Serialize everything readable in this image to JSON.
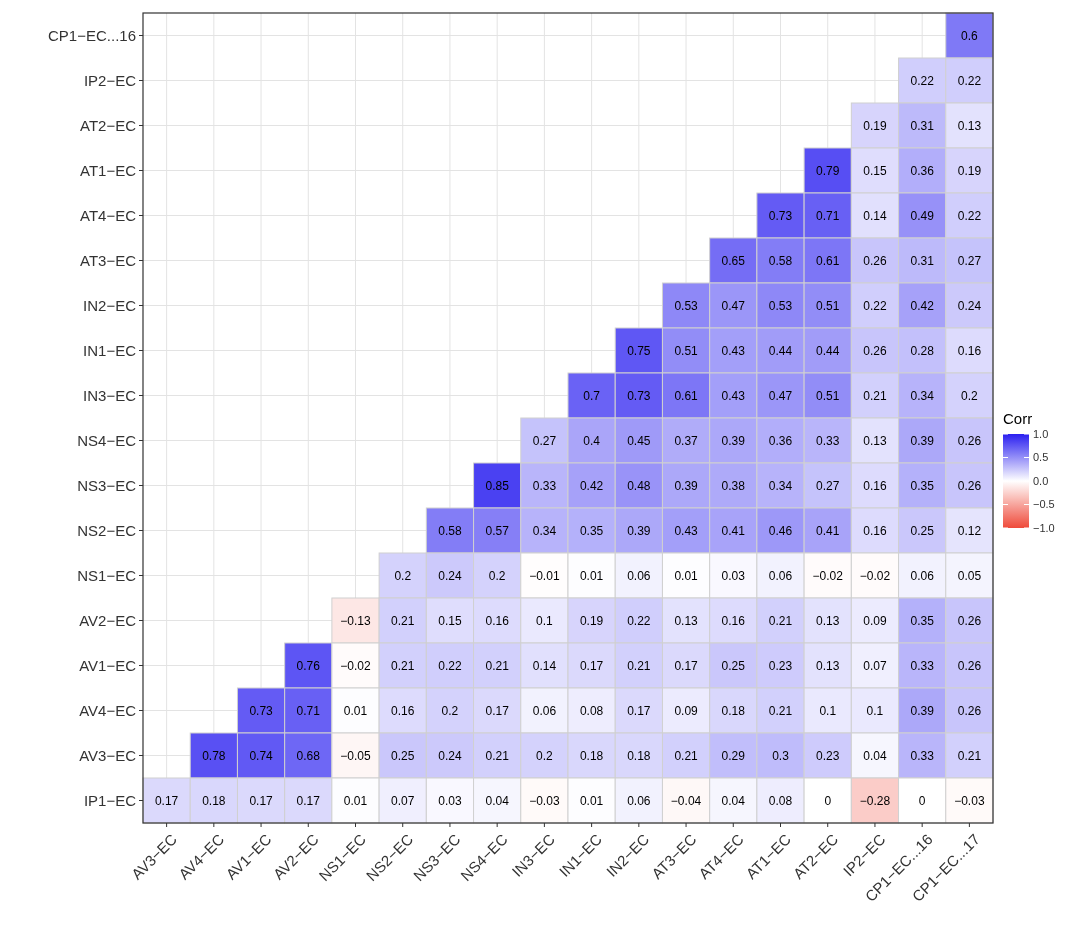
{
  "chart_data": {
    "type": "heatmap",
    "clabel": "Corr",
    "data_labels": true,
    "grid": true,
    "categories": [
      "AV3−EC",
      "AV4−EC",
      "AV1−EC",
      "AV2−EC",
      "NS1−EC",
      "NS2−EC",
      "NS3−EC",
      "NS4−EC",
      "IN3−EC",
      "IN1−EC",
      "IN2−EC",
      "AT3−EC",
      "AT4−EC",
      "AT1−EC",
      "AT2−EC",
      "IP2−EC",
      "CP1−EC...16",
      "CP1−EC...17"
    ],
    "y_categories": [
      "CP1−EC...16",
      "IP2−EC",
      "AT2−EC",
      "AT1−EC",
      "AT4−EC",
      "AT3−EC",
      "IN2−EC",
      "IN1−EC",
      "IN3−EC",
      "NS4−EC",
      "NS3−EC",
      "NS2−EC",
      "NS1−EC",
      "AV2−EC",
      "AV1−EC",
      "AV4−EC",
      "AV3−EC",
      "IP1−EC"
    ],
    "clim": [
      -1,
      1
    ],
    "cticks": [
      {
        "value": 1,
        "label": "1.0"
      },
      {
        "value": 0.5,
        "label": "0.5"
      },
      {
        "value": 0,
        "label": "0.0"
      },
      {
        "value": -0.5,
        "label": "−0.5"
      },
      {
        "value": -1,
        "label": "−1.0"
      }
    ],
    "cells": [
      [
        null,
        null,
        null,
        null,
        null,
        null,
        null,
        null,
        null,
        null,
        null,
        null,
        null,
        null,
        null,
        null,
        null,
        0.6
      ],
      [
        null,
        null,
        null,
        null,
        null,
        null,
        null,
        null,
        null,
        null,
        null,
        null,
        null,
        null,
        null,
        null,
        0.22,
        0.22
      ],
      [
        null,
        null,
        null,
        null,
        null,
        null,
        null,
        null,
        null,
        null,
        null,
        null,
        null,
        null,
        null,
        0.19,
        0.31,
        0.13
      ],
      [
        null,
        null,
        null,
        null,
        null,
        null,
        null,
        null,
        null,
        null,
        null,
        null,
        null,
        null,
        0.79,
        0.15,
        0.36,
        0.19
      ],
      [
        null,
        null,
        null,
        null,
        null,
        null,
        null,
        null,
        null,
        null,
        null,
        null,
        null,
        0.73,
        0.71,
        0.14,
        0.49,
        0.22
      ],
      [
        null,
        null,
        null,
        null,
        null,
        null,
        null,
        null,
        null,
        null,
        null,
        null,
        0.65,
        0.58,
        0.61,
        0.26,
        0.31,
        0.27
      ],
      [
        null,
        null,
        null,
        null,
        null,
        null,
        null,
        null,
        null,
        null,
        null,
        0.53,
        0.47,
        0.53,
        0.51,
        0.22,
        0.42,
        0.24
      ],
      [
        null,
        null,
        null,
        null,
        null,
        null,
        null,
        null,
        null,
        null,
        0.75,
        0.51,
        0.43,
        0.44,
        0.44,
        0.26,
        0.28,
        0.16
      ],
      [
        null,
        null,
        null,
        null,
        null,
        null,
        null,
        null,
        null,
        0.7,
        0.73,
        0.61,
        0.43,
        0.47,
        0.51,
        0.21,
        0.34,
        0.2
      ],
      [
        null,
        null,
        null,
        null,
        null,
        null,
        null,
        null,
        0.27,
        0.4,
        0.45,
        0.37,
        0.39,
        0.36,
        0.33,
        0.13,
        0.39,
        0.26
      ],
      [
        null,
        null,
        null,
        null,
        null,
        null,
        null,
        0.85,
        0.33,
        0.42,
        0.48,
        0.39,
        0.38,
        0.34,
        0.27,
        0.16,
        0.35,
        0.26
      ],
      [
        null,
        null,
        null,
        null,
        null,
        null,
        0.58,
        0.57,
        0.34,
        0.35,
        0.39,
        0.43,
        0.41,
        0.46,
        0.41,
        0.16,
        0.25,
        0.12
      ],
      [
        null,
        null,
        null,
        null,
        null,
        0.2,
        0.24,
        0.2,
        -0.01,
        0.01,
        0.06,
        0.01,
        0.03,
        0.06,
        -0.02,
        -0.02,
        0.06,
        0.05
      ],
      [
        null,
        null,
        null,
        null,
        -0.13,
        0.21,
        0.15,
        0.16,
        0.1,
        0.19,
        0.22,
        0.13,
        0.16,
        0.21,
        0.13,
        0.09,
        0.35,
        0.26
      ],
      [
        null,
        null,
        null,
        0.76,
        -0.02,
        0.21,
        0.22,
        0.21,
        0.14,
        0.17,
        0.21,
        0.17,
        0.25,
        0.23,
        0.13,
        0.07,
        0.33,
        0.26
      ],
      [
        null,
        null,
        0.73,
        0.71,
        0.01,
        0.16,
        0.2,
        0.17,
        0.06,
        0.08,
        0.17,
        0.09,
        0.18,
        0.21,
        0.1,
        0.1,
        0.39,
        0.26
      ],
      [
        null,
        0.78,
        0.74,
        0.68,
        -0.05,
        0.25,
        0.24,
        0.21,
        0.2,
        0.18,
        0.18,
        0.21,
        0.29,
        0.3,
        0.23,
        0.04,
        0.33,
        0.21
      ],
      [
        0.17,
        0.18,
        0.17,
        0.17,
        0.01,
        0.07,
        0.03,
        0.04,
        -0.03,
        0.01,
        0.06,
        -0.04,
        0.04,
        0.08,
        0,
        -0.28,
        0,
        -0.03
      ]
    ]
  }
}
